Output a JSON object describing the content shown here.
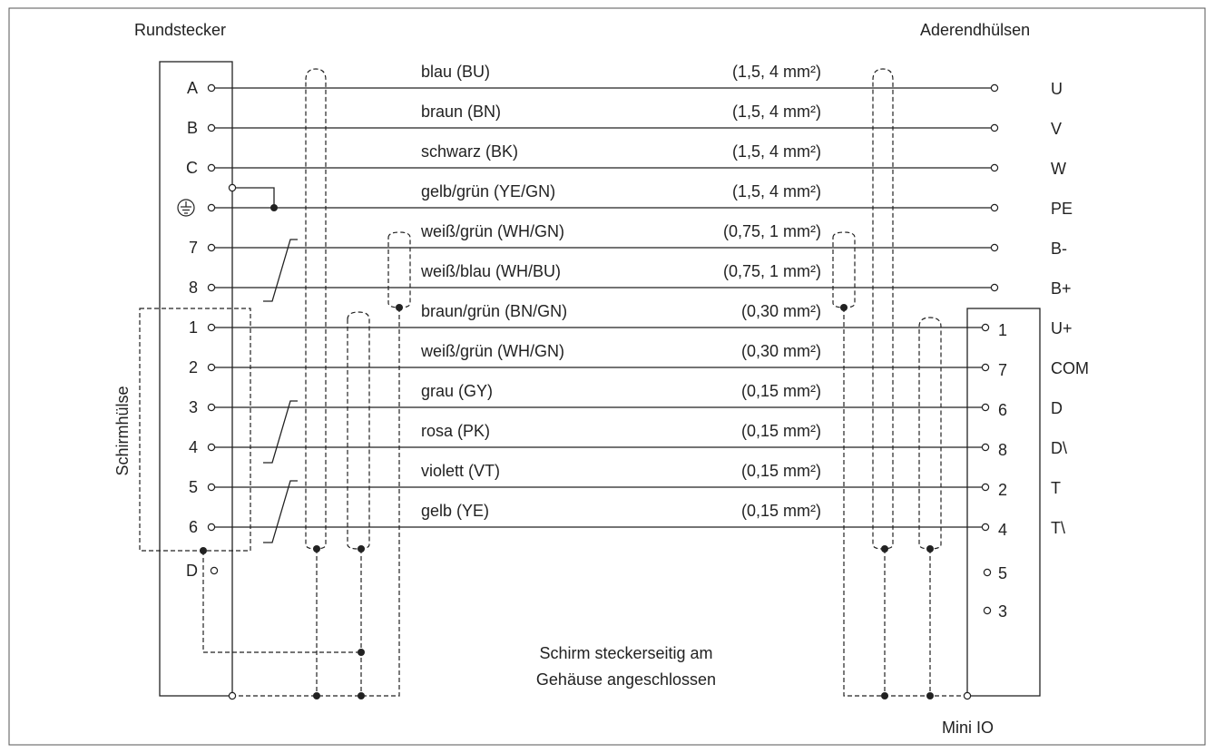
{
  "labels": {
    "left_connector": "Rundstecker",
    "right_title": "Aderendhülsen",
    "shield_sleeve": "Schirmhülse",
    "note_line1": "Schirm steckerseitig am",
    "note_line2": "Gehäuse angeschlossen",
    "right_connector": "Mini IO"
  },
  "wires": [
    {
      "pin": "A",
      "color": "blau (BU)",
      "gauge": "(1,5, 4 mm²)",
      "mini_pin": "",
      "signal": "U"
    },
    {
      "pin": "B",
      "color": "braun (BN)",
      "gauge": "(1,5, 4 mm²)",
      "mini_pin": "",
      "signal": "V"
    },
    {
      "pin": "C",
      "color": "schwarz (BK)",
      "gauge": "(1,5, 4 mm²)",
      "mini_pin": "",
      "signal": "W"
    },
    {
      "pin": "",
      "color": "gelb/grün (YE/GN)",
      "gauge": "(1,5, 4 mm²)",
      "mini_pin": "",
      "signal": "PE"
    },
    {
      "pin": "7",
      "color": "weiß/grün (WH/GN)",
      "gauge": "(0,75, 1 mm²)",
      "mini_pin": "",
      "signal": "B-"
    },
    {
      "pin": "8",
      "color": "weiß/blau (WH/BU)",
      "gauge": "(0,75, 1 mm²)",
      "mini_pin": "",
      "signal": "B+"
    },
    {
      "pin": "1",
      "color": "braun/grün (BN/GN)",
      "gauge": "(0,30 mm²)",
      "mini_pin": "1",
      "signal": "U+"
    },
    {
      "pin": "2",
      "color": "weiß/grün (WH/GN)",
      "gauge": "(0,30 mm²)",
      "mini_pin": "7",
      "signal": "COM"
    },
    {
      "pin": "3",
      "color": "grau (GY)",
      "gauge": "(0,15 mm²)",
      "mini_pin": "6",
      "signal": "D"
    },
    {
      "pin": "4",
      "color": "rosa (PK)",
      "gauge": "(0,15 mm²)",
      "mini_pin": "8",
      "signal": "D\\"
    },
    {
      "pin": "5",
      "color": "violett (VT)",
      "gauge": "(0,15 mm²)",
      "mini_pin": "2",
      "signal": "T"
    },
    {
      "pin": "6",
      "color": "gelb (YE)",
      "gauge": "(0,15 mm²)",
      "mini_pin": "4",
      "signal": "T\\"
    }
  ],
  "extra_left_pin": "D",
  "extra_mini_pins": [
    "5",
    "3"
  ]
}
